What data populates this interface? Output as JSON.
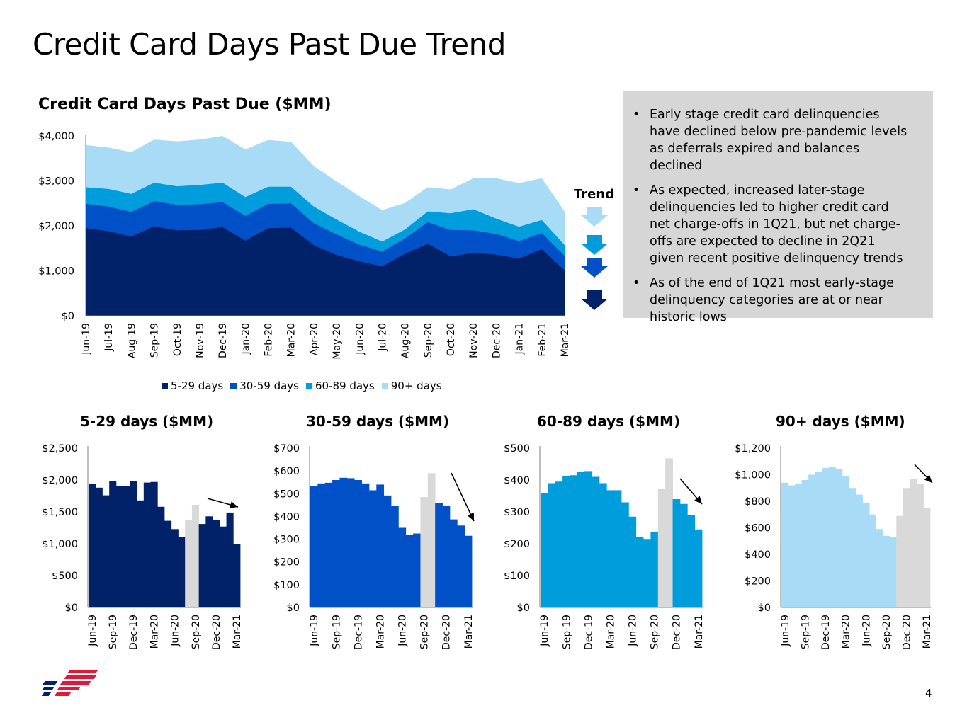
{
  "page": {
    "title": "Credit Card Days Past Due Trend",
    "page_number": "4"
  },
  "main_chart": {
    "title": "Credit Card Days Past Due ($MM)"
  },
  "trend": {
    "label": "Trend",
    "direction_icons": [
      "down-arrow-icon",
      "down-arrow-icon",
      "down-arrow-icon",
      "down-arrow-icon"
    ]
  },
  "notes": {
    "bullets": [
      "Early stage credit card delinquencies have declined below pre-pandemic levels as deferrals expired and balances declined",
      "As expected, increased later-stage delinquencies led to higher credit card net charge-offs in 1Q21, but net charge-offs are expected to decline in 2Q21 given recent positive delinquency trends",
      "As of the end of 1Q21 most early-stage delinquency categories are at or near historic lows"
    ]
  },
  "colors": {
    "d5_29": "#012169",
    "d30_59": "#0050c8",
    "d60_89": "#009ddc",
    "d90": "#a8dcf6",
    "highlight_gray": "#d9d9d9",
    "notes_bg": "#d6d6d6"
  },
  "chart_data": [
    {
      "type": "area",
      "stacked": true,
      "title": "Credit Card Days Past Due ($MM)",
      "categories": [
        "Jun-19",
        "Jul-19",
        "Aug-19",
        "Sep-19",
        "Oct-19",
        "Nov-19",
        "Dec-19",
        "Jan-20",
        "Feb-20",
        "Mar-20",
        "Apr-20",
        "May-20",
        "Jun-20",
        "Jul-20",
        "Aug-20",
        "Sep-20",
        "Oct-20",
        "Nov-20",
        "Dec-20",
        "Jan-21",
        "Feb-21",
        "Mar-21"
      ],
      "series": [
        {
          "name": "5-29 days",
          "values": [
            1950,
            1880,
            1760,
            1990,
            1900,
            1910,
            1970,
            1670,
            1950,
            1960,
            1570,
            1350,
            1210,
            1100,
            1380,
            1600,
            1320,
            1400,
            1360,
            1270,
            1480,
            1010
          ]
        },
        {
          "name": "30-59 days",
          "values": [
            540,
            550,
            550,
            560,
            570,
            570,
            560,
            550,
            540,
            540,
            490,
            460,
            370,
            330,
            340,
            480,
            590,
            500,
            460,
            390,
            360,
            320
          ]
        },
        {
          "name": "60-89 days",
          "values": [
            370,
            390,
            400,
            410,
            410,
            430,
            430,
            420,
            380,
            370,
            370,
            330,
            290,
            220,
            200,
            240,
            370,
            470,
            340,
            320,
            290,
            240
          ]
        },
        {
          "name": "90+ days",
          "values": [
            940,
            920,
            930,
            960,
            1000,
            1010,
            1040,
            1060,
            1040,
            1000,
            900,
            850,
            790,
            700,
            590,
            540,
            530,
            690,
            900,
            970,
            930,
            750
          ]
        }
      ],
      "y_tick_labels": [
        "$0",
        "$1,000",
        "$2,000",
        "$3,000",
        "$4,000"
      ],
      "ylim": [
        0,
        4000
      ],
      "legend_position": "bottom"
    },
    {
      "type": "bar",
      "title": "5-29 days ($MM)",
      "x_tick_labels": [
        "Jun-19",
        "Sep-19",
        "Dec-19",
        "Mar-20",
        "Jun-20",
        "Sep-20",
        "Dec-20",
        "Mar-21"
      ],
      "values": [
        1940,
        1880,
        1760,
        1980,
        1900,
        1910,
        1980,
        1680,
        1960,
        1970,
        1580,
        1360,
        1230,
        1110,
        1370,
        1610,
        1310,
        1430,
        1370,
        1270,
        1490,
        1000
      ],
      "highlight_gray_indices": [
        14,
        15
      ],
      "y_tick_labels": [
        "$0",
        "$500",
        "$1,000",
        "$1,500",
        "$2,000",
        "$2,500"
      ],
      "ylim": [
        0,
        2500
      ],
      "trend": "down"
    },
    {
      "type": "bar",
      "title": "30-59 days ($MM)",
      "x_tick_labels": [
        "Jun-19",
        "Sep-19",
        "Dec-19",
        "Mar-20",
        "Jun-20",
        "Sep-20",
        "Dec-20",
        "Mar-21"
      ],
      "values": [
        535,
        545,
        548,
        560,
        570,
        568,
        560,
        545,
        515,
        540,
        492,
        445,
        350,
        320,
        325,
        485,
        590,
        460,
        445,
        387,
        360,
        315
      ],
      "highlight_gray_indices": [
        15,
        16
      ],
      "y_tick_labels": [
        "$0",
        "$100",
        "$200",
        "$300",
        "$400",
        "$500",
        "$600",
        "$700"
      ],
      "ylim": [
        0,
        700
      ],
      "trend": "down"
    },
    {
      "type": "bar",
      "title": "60-89 days ($MM)",
      "x_tick_labels": [
        "Jun-19",
        "Sep-19",
        "Dec-19",
        "Mar-20",
        "Jun-20",
        "Sep-20",
        "Dec-20",
        "Mar-21"
      ],
      "values": [
        360,
        390,
        395,
        412,
        415,
        425,
        428,
        410,
        390,
        368,
        368,
        330,
        285,
        222,
        215,
        238,
        372,
        468,
        340,
        325,
        290,
        245
      ],
      "highlight_gray_indices": [
        16,
        17
      ],
      "y_tick_labels": [
        "$0",
        "$100",
        "$200",
        "$300",
        "$400",
        "$500"
      ],
      "ylim": [
        0,
        500
      ],
      "trend": "down"
    },
    {
      "type": "bar",
      "title": "90+ days ($MM)",
      "x_tick_labels": [
        "Jun-19",
        "Sep-19",
        "Dec-19",
        "Mar-20",
        "Jun-20",
        "Sep-20",
        "Dec-20",
        "Mar-21"
      ],
      "values": [
        940,
        920,
        930,
        960,
        1000,
        1020,
        1050,
        1060,
        1040,
        990,
        900,
        850,
        790,
        700,
        590,
        540,
        530,
        690,
        900,
        970,
        930,
        750
      ],
      "highlight_gray_indices": [
        17,
        18,
        19,
        20,
        21
      ],
      "y_tick_labels": [
        "$0",
        "$200",
        "$400",
        "$600",
        "$800",
        "$1,000",
        "$1,200"
      ],
      "ylim": [
        0,
        1200
      ],
      "trend": "down"
    }
  ]
}
